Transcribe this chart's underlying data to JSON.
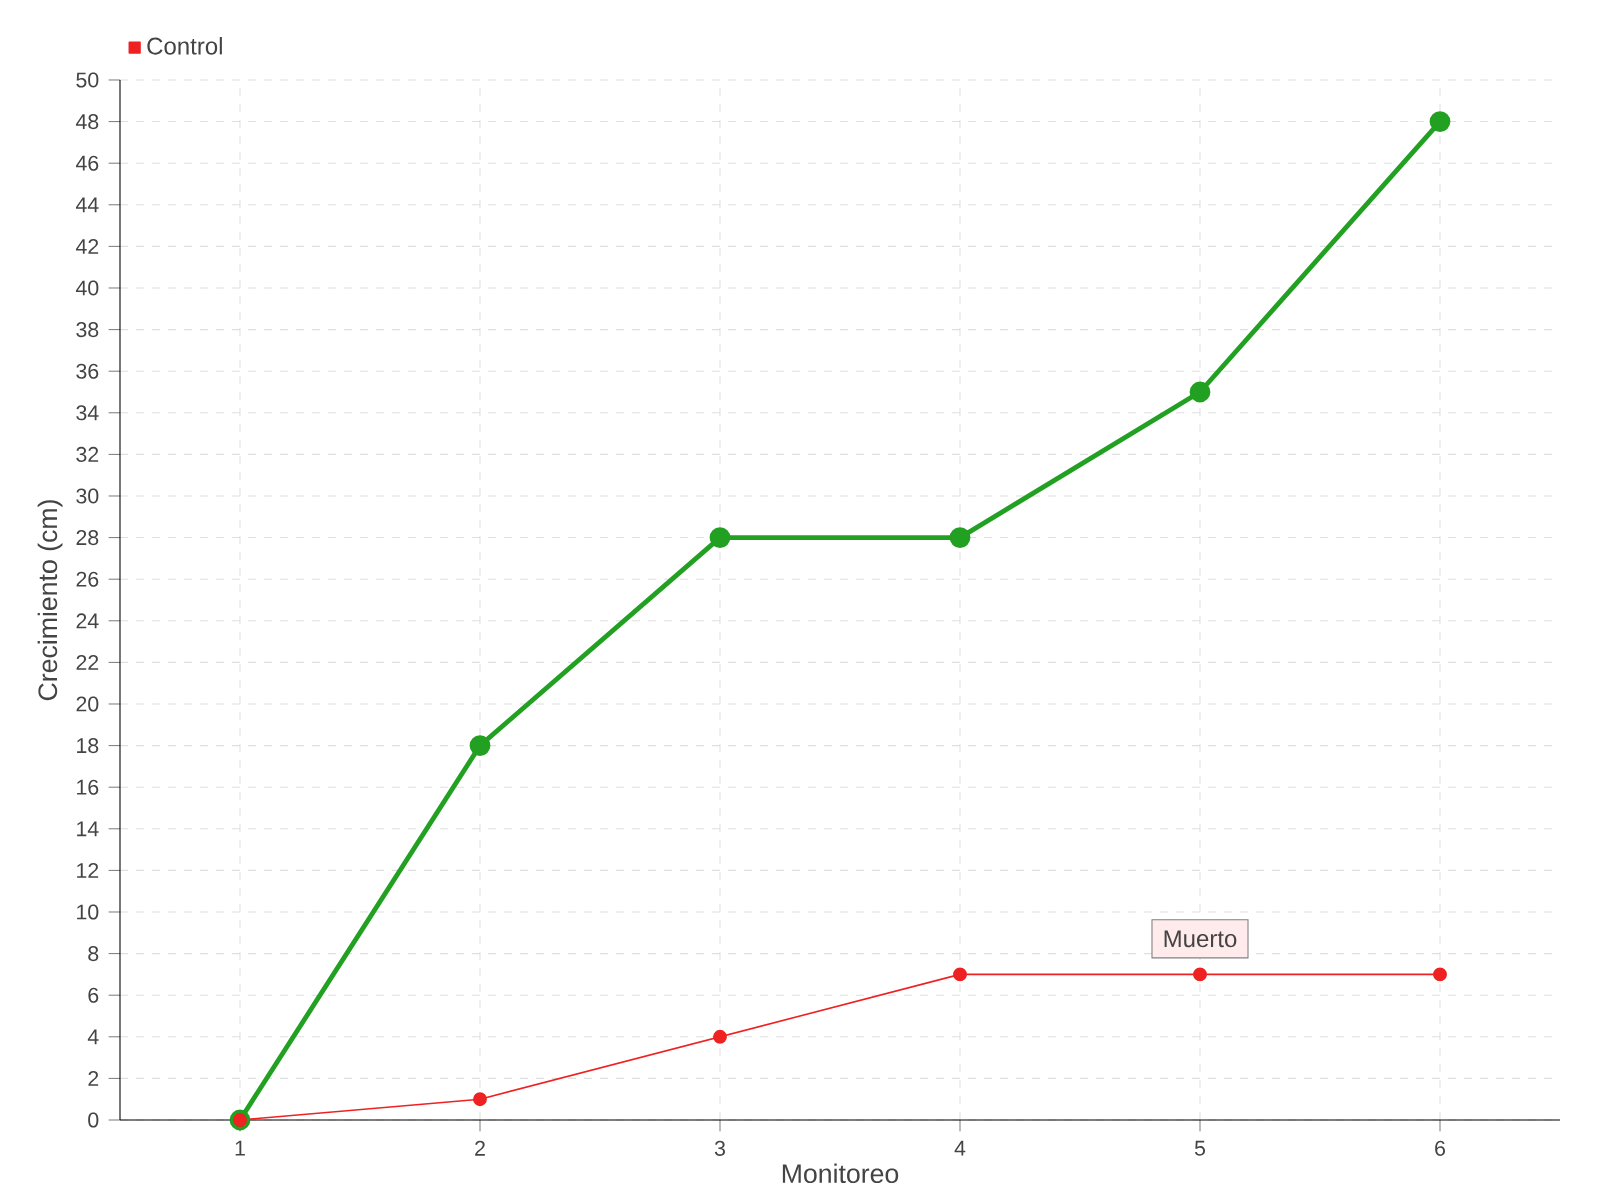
{
  "chart_data": {
    "type": "line",
    "xlabel": "Monitoreo",
    "ylabel": "Crecimiento (cm)",
    "categories": [
      "1",
      "2",
      "3",
      "4",
      "5",
      "6"
    ],
    "series": [
      {
        "color": "#22a022",
        "values": [
          0,
          18,
          28,
          28,
          35,
          48
        ]
      },
      {
        "name": "Control",
        "color": "#ee2222",
        "values": [
          0,
          1,
          4,
          7,
          7,
          7
        ]
      }
    ],
    "ylim": [
      0,
      50
    ],
    "yticks": [
      0,
      2,
      4,
      6,
      8,
      10,
      12,
      14,
      16,
      18,
      20,
      22,
      24,
      26,
      28,
      30,
      32,
      34,
      36,
      38,
      40,
      42,
      44,
      46,
      48,
      50
    ],
    "grid": true,
    "legend": "top left",
    "marker": "circle",
    "line_style": "solid",
    "annotations": [
      {
        "text": "Muerto",
        "x": "5",
        "y": 7
      }
    ]
  }
}
